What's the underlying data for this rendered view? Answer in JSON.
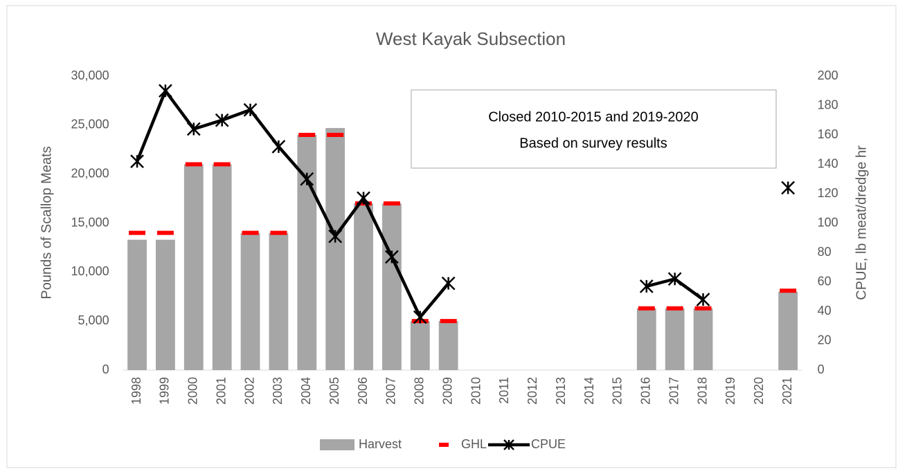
{
  "chart_data": {
    "type": "combo",
    "title": "West Kayak Subsection",
    "categories": [
      "1998",
      "1999",
      "2000",
      "2001",
      "2002",
      "2003",
      "2004",
      "2005",
      "2006",
      "2007",
      "2008",
      "2009",
      "2010",
      "2011",
      "2012",
      "2013",
      "2014",
      "2015",
      "2016",
      "2017",
      "2018",
      "2019",
      "2020",
      "2021"
    ],
    "series": [
      {
        "name": "Harvest",
        "type": "bar",
        "color": "#a6a6a6",
        "values": [
          13300,
          13300,
          21000,
          21000,
          14000,
          14000,
          24000,
          24700,
          17000,
          17000,
          5000,
          5000,
          null,
          null,
          null,
          null,
          null,
          null,
          6300,
          6300,
          6300,
          null,
          null,
          8000
        ]
      },
      {
        "name": "GHL",
        "type": "dash",
        "color": "#ff0000",
        "values": [
          14000,
          14000,
          21000,
          21000,
          14000,
          14000,
          24000,
          24000,
          17000,
          17000,
          5000,
          5000,
          null,
          null,
          null,
          null,
          null,
          null,
          6300,
          6300,
          6300,
          null,
          null,
          8100
        ]
      },
      {
        "name": "CPUE",
        "type": "line",
        "axis": "y2",
        "color": "#000000",
        "values": [
          142,
          190,
          164,
          170,
          177,
          152,
          130,
          91,
          117,
          77,
          36,
          59,
          null,
          null,
          null,
          null,
          null,
          null,
          57,
          62,
          48,
          null,
          null,
          124
        ]
      }
    ],
    "ylabel": "Pounds of Scallop Meats",
    "y2label": "CPUE, lb meat/dredge hr",
    "ylim": [
      0,
      30000
    ],
    "yticks": [
      0,
      {
        "value": 5000,
        "label": "5,000"
      },
      {
        "value": 10000,
        "label": "10,000"
      },
      {
        "value": 15000,
        "label": "15,000"
      },
      {
        "value": 20000,
        "label": "20,000"
      },
      {
        "value": 25000,
        "label": "25,000"
      },
      {
        "value": 30000,
        "label": "30,000"
      }
    ],
    "y2lim": [
      0,
      200
    ],
    "y2ticks": [
      0,
      20,
      40,
      60,
      80,
      100,
      120,
      140,
      160,
      180,
      200
    ],
    "annotation": [
      "Closed 2010-2015 and 2019-2020",
      "Based on survey results"
    ],
    "legend": "bottom"
  }
}
